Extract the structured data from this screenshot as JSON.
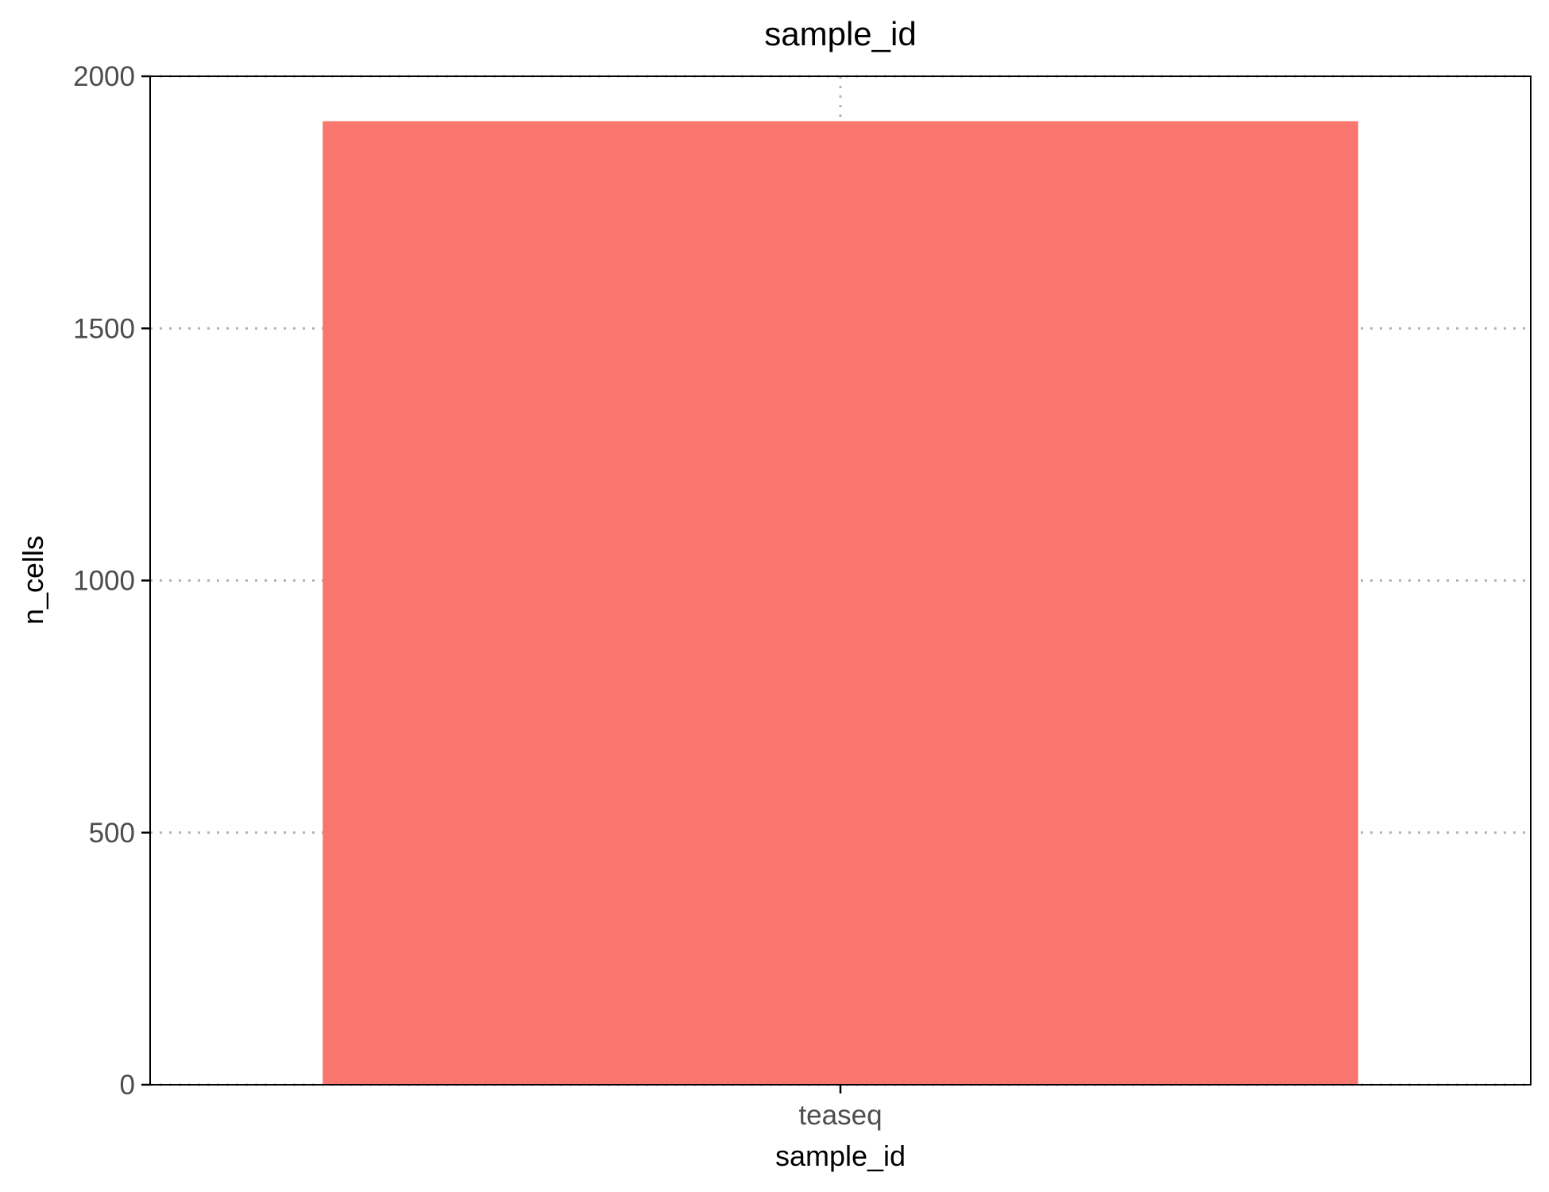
{
  "chart_data": {
    "type": "bar",
    "title": "sample_id",
    "xlabel": "sample_id",
    "ylabel": "n_cells",
    "categories": [
      "teaseq"
    ],
    "values": [
      1911
    ],
    "ylim": [
      0,
      2000
    ],
    "yticks": [
      0,
      500,
      1000,
      1500,
      2000
    ],
    "grid": true,
    "grid_style": "dotted",
    "legend": "none",
    "colors": {
      "bar": "#F8766D",
      "grid": "#b3b3b3",
      "tick_text": "#4d4d4d"
    }
  }
}
